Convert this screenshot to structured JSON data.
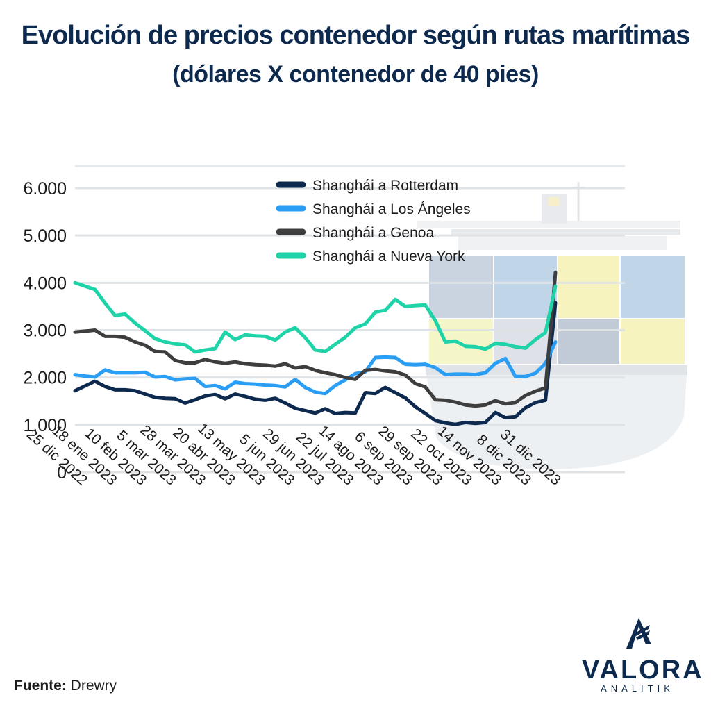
{
  "header": {
    "title": "Evolución de precios contenedor según rutas marítimas",
    "subtitle": "(dólares X contenedor de 40 pies)"
  },
  "footer": {
    "source_label": "Fuente:",
    "source_value": "Drewry"
  },
  "brand": {
    "name": "VALORA",
    "tagline": "ANALITIK",
    "color": "#0d2a4e"
  },
  "chart_data": {
    "type": "line",
    "title": "Evolución de precios contenedor según rutas marítimas",
    "subtitle": "(dólares X contenedor de 40 pies)",
    "xlabel": "",
    "ylabel": "",
    "ylim": [
      0,
      6000
    ],
    "yticks": [
      0,
      1000,
      2000,
      3000,
      4000,
      5000,
      6000
    ],
    "ytick_labels": [
      "0",
      "1.000",
      "2.000",
      "3.000",
      "4.000",
      "5.000",
      "6.000"
    ],
    "grid": true,
    "legend_position": "top-center",
    "x_tick_labels": [
      "25 dic 2022",
      "18 ene 2023",
      "10 feb 2023",
      "5 mar 2023",
      "28 mar 2023",
      "20 abr 2023",
      "13 may 2023",
      "5 jun 2023",
      "29 jun 2023",
      "22 jul 2023",
      "14 ago 2023",
      "6 sep 2023",
      "29 sep 2023",
      "22 oct 2023",
      "14 nov 2023",
      "8 dic 2023",
      "31 dic 2023"
    ],
    "x": [
      "25 dic 2022",
      "2 ene 2023",
      "10 ene 2023",
      "18 ene 2023",
      "26 ene 2023",
      "3 feb 2023",
      "10 feb 2023",
      "18 feb 2023",
      "26 feb 2023",
      "5 mar 2023",
      "13 mar 2023",
      "21 mar 2023",
      "28 mar 2023",
      "5 abr 2023",
      "13 abr 2023",
      "20 abr 2023",
      "28 abr 2023",
      "6 may 2023",
      "13 may 2023",
      "21 may 2023",
      "29 may 2023",
      "5 jun 2023",
      "13 jun 2023",
      "21 jun 2023",
      "29 jun 2023",
      "7 jul 2023",
      "14 jul 2023",
      "22 jul 2023",
      "30 jul 2023",
      "7 ago 2023",
      "14 ago 2023",
      "22 ago 2023",
      "30 ago 2023",
      "6 sep 2023",
      "14 sep 2023",
      "22 sep 2023",
      "29 sep 2023",
      "7 oct 2023",
      "15 oct 2023",
      "22 oct 2023",
      "30 oct 2023",
      "7 nov 2023",
      "14 nov 2023",
      "22 nov 2023",
      "30 nov 2023",
      "8 dic 2023",
      "16 dic 2023",
      "24 dic 2023",
      "31 dic 2023"
    ],
    "series": [
      {
        "name": "Shanghái a Rotterdam",
        "color": "#0d2a4e",
        "values": [
          1720,
          1820,
          1920,
          1810,
          1740,
          1740,
          1720,
          1650,
          1580,
          1560,
          1550,
          1460,
          1530,
          1610,
          1640,
          1550,
          1650,
          1600,
          1540,
          1520,
          1560,
          1460,
          1350,
          1300,
          1250,
          1340,
          1240,
          1260,
          1250,
          1680,
          1660,
          1790,
          1680,
          1570,
          1380,
          1240,
          1090,
          1040,
          1010,
          1050,
          1030,
          1050,
          1260,
          1150,
          1170,
          1360,
          1470,
          1520,
          3580
        ]
      },
      {
        "name": "Shanghái a Los Ángeles",
        "color": "#2a9df4",
        "values": [
          2060,
          2030,
          2010,
          2160,
          2100,
          2100,
          2100,
          2110,
          2010,
          2020,
          1950,
          1970,
          1980,
          1810,
          1830,
          1760,
          1900,
          1870,
          1860,
          1840,
          1830,
          1800,
          1960,
          1790,
          1690,
          1660,
          1830,
          1950,
          2080,
          2120,
          2420,
          2430,
          2420,
          2280,
          2270,
          2280,
          2210,
          2060,
          2070,
          2070,
          2060,
          2100,
          2300,
          2400,
          2020,
          2020,
          2090,
          2300,
          2750
        ]
      },
      {
        "name": "Shanghái a Genoa",
        "color": "#3e3e3e",
        "values": [
          2960,
          2980,
          3000,
          2870,
          2870,
          2850,
          2750,
          2680,
          2550,
          2540,
          2360,
          2310,
          2310,
          2380,
          2330,
          2300,
          2330,
          2290,
          2270,
          2260,
          2240,
          2290,
          2200,
          2230,
          2150,
          2100,
          2060,
          2000,
          1960,
          2150,
          2170,
          2140,
          2120,
          2050,
          1870,
          1800,
          1530,
          1520,
          1480,
          1420,
          1400,
          1420,
          1510,
          1440,
          1470,
          1620,
          1710,
          1780,
          4220
        ]
      },
      {
        "name": "Shanghái a Nueva York",
        "color": "#1dd3a7",
        "values": [
          4000,
          3930,
          3860,
          3570,
          3310,
          3340,
          3150,
          2990,
          2820,
          2750,
          2710,
          2690,
          2540,
          2580,
          2610,
          2960,
          2800,
          2900,
          2880,
          2870,
          2790,
          2960,
          3050,
          2840,
          2580,
          2550,
          2700,
          2850,
          3050,
          3130,
          3380,
          3420,
          3650,
          3500,
          3520,
          3530,
          3200,
          2750,
          2770,
          2660,
          2650,
          2600,
          2720,
          2700,
          2650,
          2620,
          2800,
          2950,
          3930
        ]
      }
    ]
  }
}
